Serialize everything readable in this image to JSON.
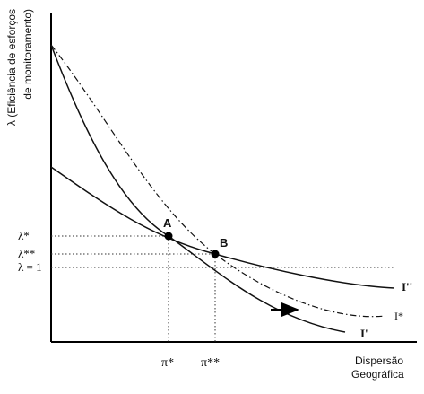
{
  "axes": {
    "y_label_line1": "λ (Eficiência de esforços",
    "y_label_line2": "de monitoramento)",
    "x_label_line1": "Dispersão",
    "x_label_line2": "Geográfica"
  },
  "y_ticks": {
    "lambda_star": "λ*",
    "lambda_double_star": "λ**",
    "lambda_one": "λ = 1"
  },
  "x_ticks": {
    "pi_star": "π*",
    "pi_double_star": "π**"
  },
  "points": {
    "A": "A",
    "B": "B"
  },
  "curves": {
    "I_double_prime": "I''",
    "I_star": "I*",
    "I_prime": "I'"
  }
}
